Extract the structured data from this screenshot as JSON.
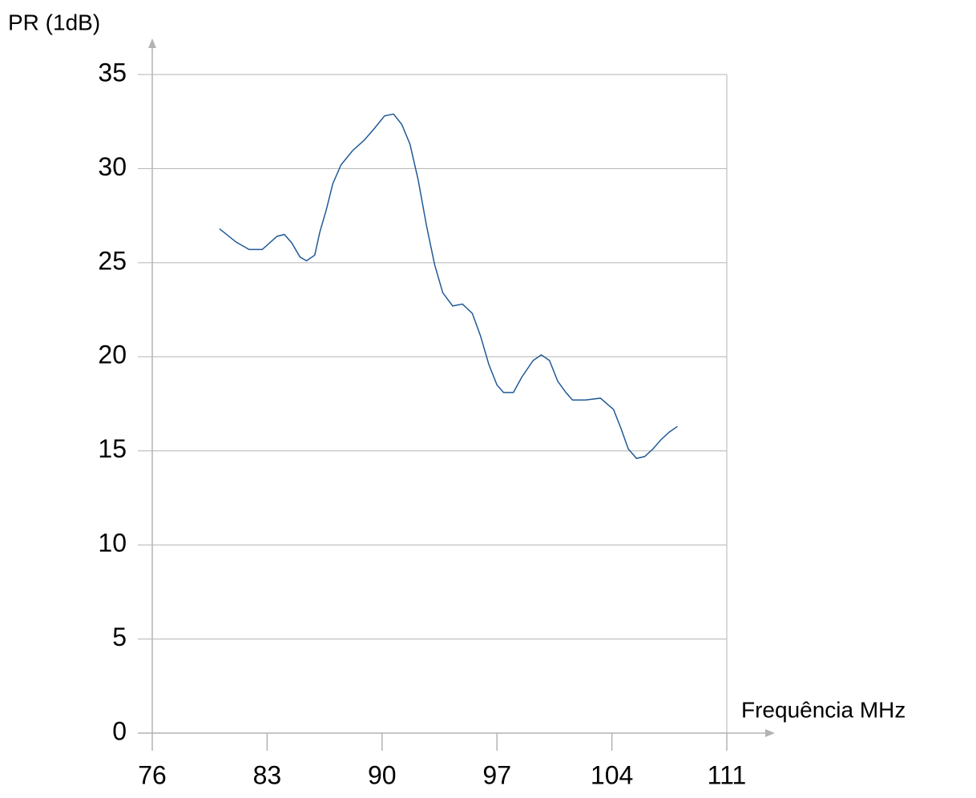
{
  "chart_data": {
    "type": "line",
    "y_label": "PR (1dB)",
    "x_label": "Frequência MHz",
    "xlim": [
      76,
      111
    ],
    "xticks": [
      76,
      83,
      90,
      97,
      104,
      111
    ],
    "ylim": [
      0,
      35
    ],
    "yticks": [
      0,
      5,
      10,
      15,
      20,
      25,
      30,
      35
    ],
    "grid": true,
    "x": [
      80.1,
      81.1,
      81.9,
      82.7,
      83.6,
      84.05,
      84.5,
      85.0,
      85.4,
      85.9,
      86.2,
      86.6,
      87.0,
      87.5,
      88.2,
      88.9,
      89.5,
      90.15,
      90.7,
      91.2,
      91.7,
      92.2,
      92.7,
      93.2,
      93.7,
      94.3,
      94.9,
      95.5,
      96.0,
      96.5,
      97.0,
      97.4,
      98.0,
      98.5,
      99.2,
      99.7,
      100.2,
      100.7,
      101.2,
      101.6,
      102.4,
      103.3,
      104.1,
      104.55,
      105.0,
      105.5,
      106.0,
      106.5,
      107.0,
      107.5,
      108.0
    ],
    "series": [
      {
        "color": "#1f5a96",
        "values": [
          26.8,
          26.1,
          25.7,
          25.7,
          26.4,
          26.5,
          26.05,
          25.3,
          25.1,
          25.4,
          26.6,
          27.8,
          29.2,
          30.2,
          30.95,
          31.5,
          32.1,
          32.8,
          32.9,
          32.35,
          31.3,
          29.4,
          27.0,
          24.9,
          23.4,
          22.7,
          22.8,
          22.3,
          21.1,
          19.6,
          18.5,
          18.1,
          18.1,
          18.9,
          19.8,
          20.1,
          19.8,
          18.7,
          18.1,
          17.7,
          17.7,
          17.8,
          17.2,
          16.2,
          15.1,
          14.6,
          14.7,
          15.1,
          15.6,
          16.0,
          16.3
        ]
      }
    ]
  }
}
